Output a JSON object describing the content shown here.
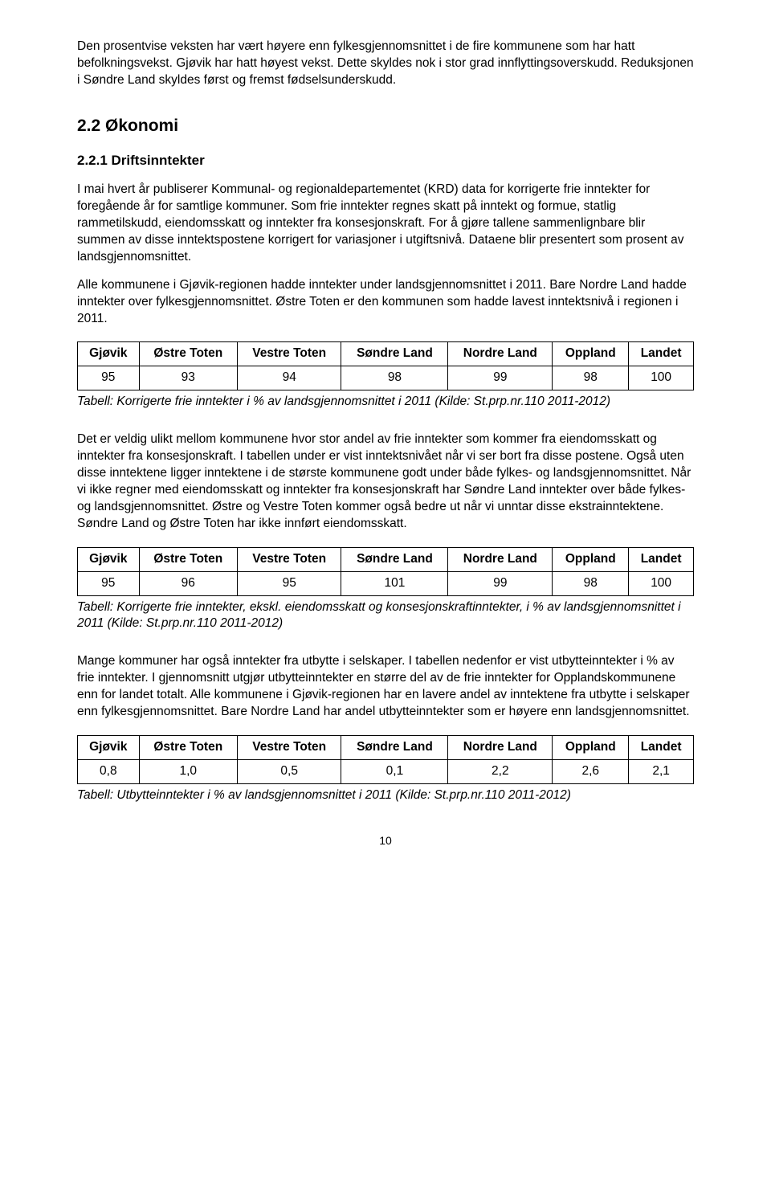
{
  "para1": "Den prosentvise veksten har vært høyere enn fylkesgjennomsnittet i de fire kommunene som har hatt befolkningsvekst. Gjøvik har hatt høyest vekst. Dette skyldes nok i stor grad innflyttingsoverskudd. Reduksjonen i Søndre Land skyldes først og fremst fødselsunderskudd.",
  "h2": "2.2  Økonomi",
  "h3": "2.2.1  Driftsinntekter",
  "para2": "I mai hvert år publiserer Kommunal- og regionaldepartementet (KRD) data for korrigerte frie inntekter for foregående år for samtlige kommuner. Som frie inntekter regnes skatt på inntekt og formue, statlig rammetilskudd, eiendomsskatt og inntekter fra konsesjonskraft. For å gjøre tallene sammenlignbare blir summen av disse inntektspostene korrigert for variasjoner i utgiftsnivå. Dataene blir presentert som prosent av landsgjennomsnittet.",
  "para3": "Alle kommunene i Gjøvik-regionen hadde inntekter under landsgjennomsnittet i 2011. Bare Nordre Land hadde inntekter over fylkesgjennomsnittet. Østre Toten er den kommunen som hadde lavest inntektsnivå i regionen i 2011.",
  "headers": [
    "Gjøvik",
    "Østre Toten",
    "Vestre Toten",
    "Søndre Land",
    "Nordre Land",
    "Oppland",
    "Landet"
  ],
  "table1": {
    "row": [
      "95",
      "93",
      "94",
      "98",
      "99",
      "98",
      "100"
    ]
  },
  "caption1": "Tabell: Korrigerte frie inntekter i % av landsgjennomsnittet i 2011 (Kilde: St.prp.nr.110 2011-2012)",
  "para4": "Det er veldig ulikt mellom kommunene hvor stor andel av frie inntekter som kommer fra eiendomsskatt og inntekter fra konsesjonskraft. I tabellen under er vist inntektsnivået når vi ser bort fra disse postene. Også uten disse inntektene ligger inntektene i de største kommunene godt under både fylkes- og landsgjennomsnittet. Når vi ikke regner med eiendomsskatt og inntekter fra konsesjonskraft har Søndre Land inntekter over både fylkes- og landsgjennomsnittet. Østre og Vestre Toten kommer også bedre ut når vi unntar disse ekstrainntektene.  Søndre Land og Østre Toten har ikke innført eiendomsskatt.",
  "table2": {
    "row": [
      "95",
      "96",
      "95",
      "101",
      "99",
      "98",
      "100"
    ]
  },
  "caption2": "Tabell: Korrigerte frie inntekter, ekskl. eiendomsskatt og konsesjonskraftinntekter, i % av landsgjennomsnittet i 2011 (Kilde: St.prp.nr.110 2011-2012)",
  "para5": "Mange kommuner har også inntekter fra utbytte i selskaper. I tabellen nedenfor er vist utbytteinntekter i % av frie inntekter. I gjennomsnitt utgjør utbytteinntekter en større del av de frie inntekter for Opplandskommunene enn for landet totalt. Alle kommunene i Gjøvik-regionen har en lavere andel av inntektene fra utbytte i selskaper enn fylkesgjennomsnittet. Bare Nordre Land har andel utbytteinntekter som er høyere enn landsgjennomsnittet.",
  "table3": {
    "row": [
      "0,8",
      "1,0",
      "0,5",
      "0,1",
      "2,2",
      "2,6",
      "2,1"
    ]
  },
  "caption3": "Tabell: Utbytteinntekter i % av landsgjennomsnittet i 2011 (Kilde: St.prp.nr.110 2011-2012)",
  "pagenum": "10"
}
